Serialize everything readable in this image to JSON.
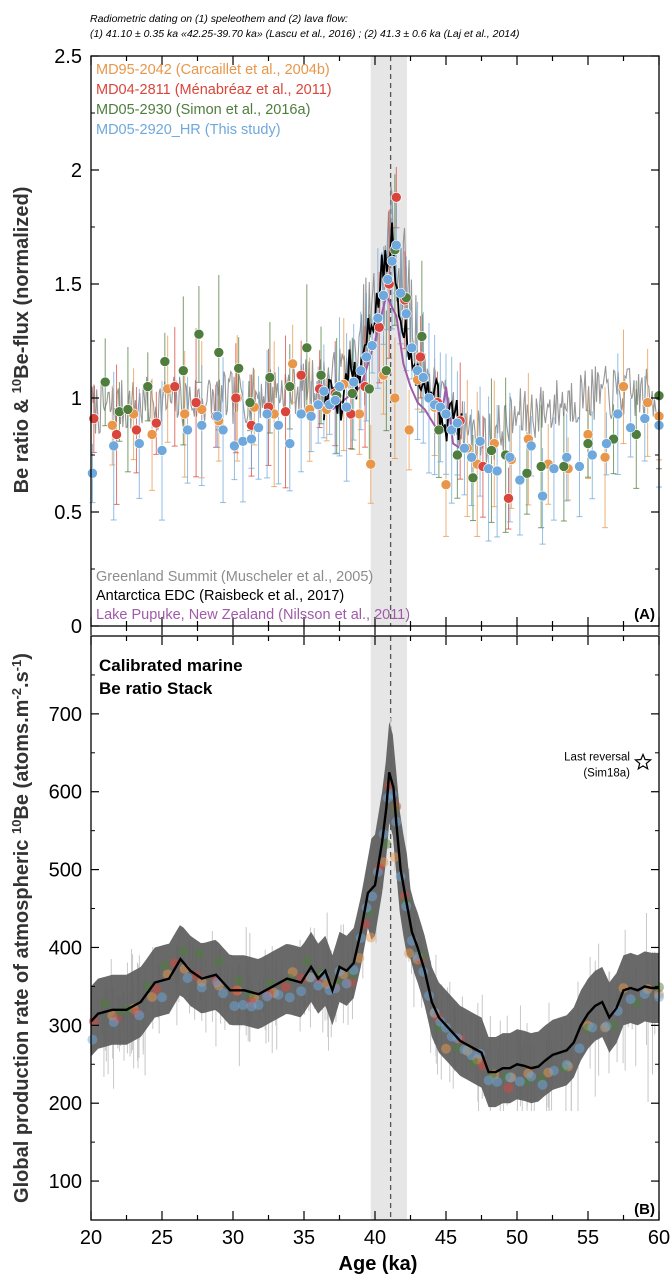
{
  "header": {
    "line1": "Radiometric dating on (1) speleothem and (2) lava flow:",
    "line2": "(1) 41.10 ± 0.35 ka «42.25-39.70 ka» (Lascu et al., 2016) ; (2) 41.3 ± 0.6 ka (Laj et al., 2014)"
  },
  "colors": {
    "md95_2042": "#e8974a",
    "md04_2811": "#d9453b",
    "md05_2930": "#4f7d3e",
    "md05_2920": "#6ea8dc",
    "greenland": "#8c8c8c",
    "edc": "#000000",
    "pupuke": "#a05ba8",
    "band": "#e6e6e6",
    "envelope": "#5c5c5c"
  },
  "chart_data": [
    {
      "type": "scatter",
      "panel_label": "(A)",
      "ylabel": "Be ratio & 10Be-flux (normalized)",
      "ylim": [
        0,
        2.5
      ],
      "xlim": [
        20,
        60
      ],
      "yticks": [
        "0",
        "0.5",
        "1",
        "1.5",
        "2",
        "2.5"
      ],
      "legend_top": [
        {
          "key": "md95_2042",
          "label": "MD95-2042 (Carcaillet et al., 2004b)"
        },
        {
          "key": "md04_2811",
          "label": "MD04-2811 (Ménabréaz et al., 2011)"
        },
        {
          "key": "md05_2930",
          "label": "MD05-2930 (Simon et al., 2016a)"
        },
        {
          "key": "md05_2920",
          "label": "MD05-2920_HR (This study)"
        }
      ],
      "legend_bottom": [
        {
          "key": "greenland",
          "label": "Greenland Summit (Muscheler et al., 2005)"
        },
        {
          "key": "edc",
          "label": "Antarctica EDC (Raisbeck et al., 2017)"
        },
        {
          "key": "pupuke",
          "label": "Lake Pupuke, New Zealand (Nilsson et al., 2011)"
        }
      ],
      "series": [
        {
          "key": "md95_2042",
          "x": [
            21.5,
            23.0,
            24.3,
            25.4,
            26.6,
            27.8,
            29.0,
            30.3,
            31.5,
            32.9,
            34.2,
            35.4,
            36.6,
            37.8,
            38.9,
            39.7,
            40.6,
            41.4,
            42.4,
            43.0,
            44.2,
            45.0,
            46.5,
            47.2,
            48.4,
            49.6,
            50.8,
            52.2,
            53.6,
            55.0,
            56.2,
            57.5,
            59.2,
            60.0
          ],
          "y": [
            0.88,
            0.93,
            0.84,
            1.04,
            0.93,
            0.95,
            0.9,
            1.0,
            0.96,
            0.93,
            1.15,
            0.95,
            0.95,
            1.06,
            0.93,
            0.71,
            1.1,
            1.0,
            0.86,
            1.08,
            0.96,
            0.62,
            0.78,
            0.71,
            0.8,
            0.73,
            0.82,
            0.71,
            0.69,
            0.84,
            0.74,
            1.05,
            0.98,
            0.92
          ]
        },
        {
          "key": "md04_2811",
          "x": [
            20.2,
            21.8,
            23.2,
            24.6,
            25.9,
            27.4,
            28.8,
            30.2,
            31.3,
            32.5,
            33.7,
            34.8,
            36.1,
            37.2,
            38.3,
            39.3,
            40.3,
            41.0,
            41.5,
            42.1,
            43.2,
            44.4,
            46.0,
            47.6,
            49.4
          ],
          "y": [
            0.91,
            0.84,
            0.86,
            0.89,
            1.05,
            0.98,
            0.92,
            1.0,
            0.88,
            0.96,
            0.94,
            1.1,
            1.04,
            1.02,
            0.93,
            1.05,
            1.31,
            1.5,
            1.88,
            1.43,
            1.18,
            0.98,
            0.9,
            0.7,
            0.56
          ]
        },
        {
          "key": "md05_2930",
          "x": [
            21.0,
            22.0,
            22.6,
            24.0,
            25.2,
            26.5,
            27.6,
            29.0,
            30.4,
            31.2,
            32.6,
            34.0,
            35.2,
            36.2,
            37.3,
            38.4,
            39.6,
            40.8,
            41.4,
            42.2,
            43.3,
            44.5,
            45.8,
            46.9,
            48.2,
            49.2,
            50.7,
            51.7,
            53.3,
            55.0,
            56.8,
            58.4,
            60.0
          ],
          "y": [
            1.07,
            0.94,
            0.95,
            1.05,
            1.16,
            1.12,
            1.28,
            1.2,
            1.13,
            0.98,
            1.09,
            1.05,
            1.22,
            1.1,
            1.01,
            1.02,
            1.04,
            1.12,
            1.65,
            1.44,
            1.27,
            0.86,
            0.75,
            0.65,
            0.77,
            0.75,
            0.67,
            0.7,
            0.7,
            0.8,
            0.82,
            0.84,
            1.01
          ]
        },
        {
          "key": "md05_2920",
          "x": [
            20.1,
            21.6,
            23.4,
            25.0,
            26.8,
            27.8,
            28.9,
            29.3,
            30.1,
            30.7,
            31.3,
            31.8,
            32.4,
            33.2,
            34.0,
            34.8,
            35.5,
            36.0,
            36.4,
            36.8,
            37.2,
            37.5,
            38.0,
            38.5,
            39.0,
            39.4,
            39.8,
            40.2,
            40.6,
            40.9,
            41.2,
            41.5,
            41.8,
            42.2,
            42.6,
            43.0,
            43.4,
            43.8,
            44.2,
            44.6,
            45.0,
            45.4,
            45.8,
            46.3,
            46.8,
            47.4,
            48.0,
            48.6,
            49.5,
            50.2,
            51.0,
            51.8,
            52.6,
            53.5,
            54.4,
            55.3,
            56.3,
            57.1,
            58.0,
            59.0,
            60.0
          ],
          "y": [
            0.67,
            0.79,
            0.8,
            0.77,
            0.86,
            0.88,
            0.92,
            0.86,
            0.79,
            0.81,
            0.82,
            0.87,
            0.93,
            0.88,
            0.8,
            0.93,
            0.92,
            0.97,
            1.03,
            0.97,
            0.99,
            1.05,
            0.96,
            1.07,
            1.12,
            1.18,
            1.23,
            1.35,
            1.45,
            1.52,
            1.6,
            1.67,
            1.46,
            1.37,
            1.22,
            1.12,
            1.09,
            1.0,
            0.97,
            0.96,
            0.93,
            0.86,
            0.89,
            0.78,
            0.74,
            0.81,
            0.69,
            0.68,
            0.74,
            0.64,
            0.79,
            0.57,
            0.69,
            0.74,
            0.7,
            0.75,
            0.8,
            0.93,
            0.87,
            0.91,
            0.88
          ]
        }
      ],
      "greenland_seed": 7,
      "greenland_baseline": {
        "x": [
          20,
          25,
          30,
          35,
          37,
          39,
          40.5,
          41.2,
          42,
          43,
          44,
          46,
          48,
          50,
          52,
          55,
          58,
          60
        ],
        "y": [
          0.95,
          0.98,
          1.0,
          1.05,
          1.08,
          1.2,
          1.45,
          1.75,
          1.5,
          1.25,
          1.05,
          0.88,
          0.82,
          0.92,
          0.95,
          1.02,
          1.02,
          1.0
        ]
      },
      "edc_line": {
        "x": [
          36.4,
          37.0,
          37.6,
          38.2,
          38.8,
          39.3,
          39.7,
          40.1,
          40.5,
          40.9,
          41.2,
          41.5,
          41.8,
          42.2,
          42.6,
          43.0,
          43.5,
          44.0,
          44.5,
          45.0,
          45.5,
          46.2
        ],
        "y": [
          0.95,
          1.06,
          0.98,
          1.15,
          1.05,
          1.22,
          1.3,
          1.4,
          1.55,
          1.6,
          1.7,
          1.48,
          1.4,
          1.28,
          1.2,
          1.12,
          1.02,
          1.08,
          0.96,
          0.88,
          0.95,
          0.85
        ]
      },
      "pupuke_line": {
        "x": [
          37.0,
          38.0,
          39.0,
          40.0,
          40.8,
          41.5,
          42.0,
          42.5,
          43.0,
          43.5,
          44.0,
          44.5,
          45.0,
          45.5,
          46.0
        ],
        "y": [
          0.95,
          1.0,
          1.05,
          1.25,
          1.45,
          1.36,
          1.15,
          1.05,
          0.98,
          0.95,
          0.9,
          0.85,
          1.05,
          0.8,
          0.78
        ]
      }
    },
    {
      "type": "line",
      "panel_label": "(B)",
      "title": "Calibrated marine\nBe ratio Stack",
      "xlabel": "Age (ka)",
      "ylabel": "Global production rate of atmospheric 10Be (atoms.m-2.s-1)",
      "xlim": [
        20,
        60
      ],
      "ylim": [
        50,
        800
      ],
      "xticks": [
        "20",
        "25",
        "30",
        "35",
        "40",
        "45",
        "50",
        "55",
        "60"
      ],
      "yticks": [
        "100",
        "200",
        "300",
        "400",
        "500",
        "600",
        "700"
      ],
      "annotation": {
        "line1": "Last reversal",
        "line2": "(Sim18a)",
        "y": 630
      },
      "stack_line": {
        "x": [
          20,
          20.5,
          21.5,
          22.5,
          23.5,
          24.5,
          25.5,
          26.3,
          27.0,
          27.8,
          28.8,
          29.8,
          30.8,
          31.8,
          32.8,
          33.8,
          34.8,
          35.5,
          36.0,
          36.5,
          37.0,
          37.5,
          38.0,
          38.5,
          39.0,
          39.5,
          40.0,
          40.5,
          40.8,
          41.0,
          41.3,
          41.5,
          41.8,
          42.2,
          42.6,
          43.0,
          43.5,
          44.0,
          44.5,
          45.0,
          45.5,
          46.0,
          46.5,
          47.0,
          47.5,
          48.0,
          48.5,
          49.0,
          49.5,
          50.0,
          50.5,
          51.0,
          51.5,
          52.0,
          52.5,
          53.0,
          53.5,
          54.0,
          54.5,
          55.0,
          55.5,
          56.0,
          56.5,
          57.0,
          57.5,
          58.0,
          58.5,
          59.0,
          59.5,
          60.0
        ],
        "y": [
          305,
          315,
          320,
          320,
          330,
          355,
          360,
          385,
          370,
          360,
          365,
          345,
          345,
          340,
          350,
          360,
          355,
          375,
          360,
          370,
          345,
          375,
          370,
          380,
          420,
          470,
          480,
          535,
          580,
          625,
          605,
          560,
          500,
          460,
          420,
          400,
          370,
          330,
          310,
          300,
          290,
          280,
          275,
          270,
          265,
          240,
          240,
          245,
          245,
          250,
          248,
          245,
          247,
          255,
          262,
          265,
          268,
          278,
          300,
          315,
          325,
          330,
          310,
          322,
          345,
          348,
          345,
          350,
          348,
          348
        ]
      },
      "envelope_halfwidth": 45,
      "background_seed": 11,
      "background_count": 190
    }
  ]
}
